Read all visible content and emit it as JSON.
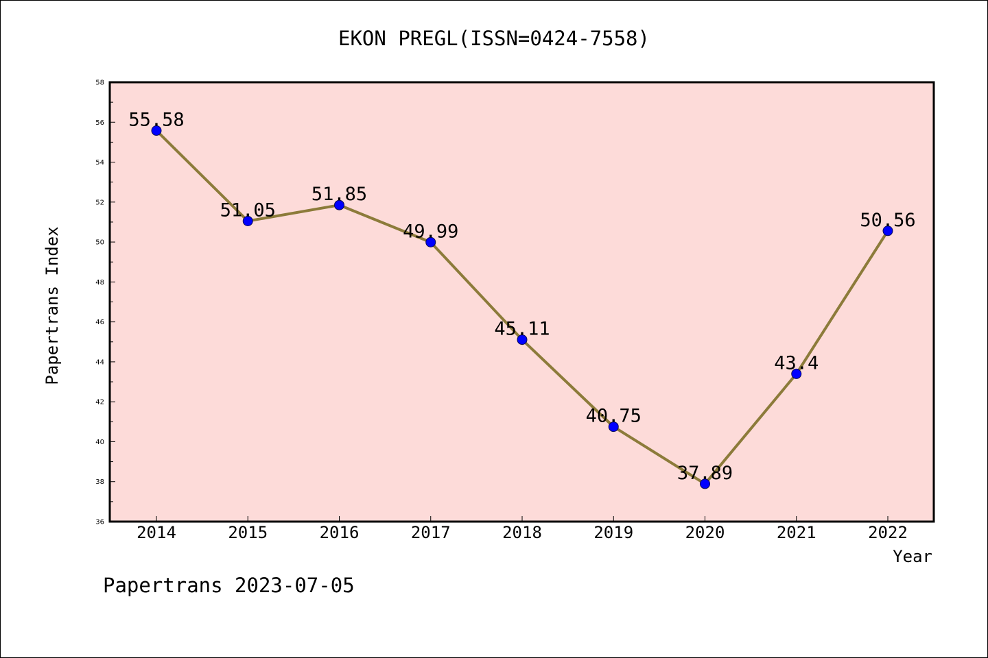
{
  "chart_data": {
    "type": "line",
    "title": "EKON PREGL(ISSN=0424-7558)",
    "xlabel": "Year",
    "ylabel": "Papertrans Index",
    "footer": "Papertrans 2023-07-05",
    "categories": [
      "2014",
      "2015",
      "2016",
      "2017",
      "2018",
      "2019",
      "2020",
      "2021",
      "2022"
    ],
    "values": [
      55.58,
      51.05,
      51.85,
      49.99,
      45.11,
      40.75,
      37.89,
      43.4,
      50.56
    ],
    "data_labels": [
      "55.58",
      "51.05",
      "51.85",
      "49.99",
      "45.11",
      "40.75",
      "37.89",
      "43.4",
      "50.56"
    ],
    "ylim": [
      36,
      58
    ],
    "yticks": [
      "36",
      "38",
      "40",
      "42",
      "44",
      "46",
      "48",
      "50",
      "52",
      "54",
      "56",
      "58"
    ],
    "grid": false,
    "colors": {
      "plot_background": "#fddbd9",
      "line": "#8c7b3a",
      "marker": "#0000ff"
    }
  }
}
